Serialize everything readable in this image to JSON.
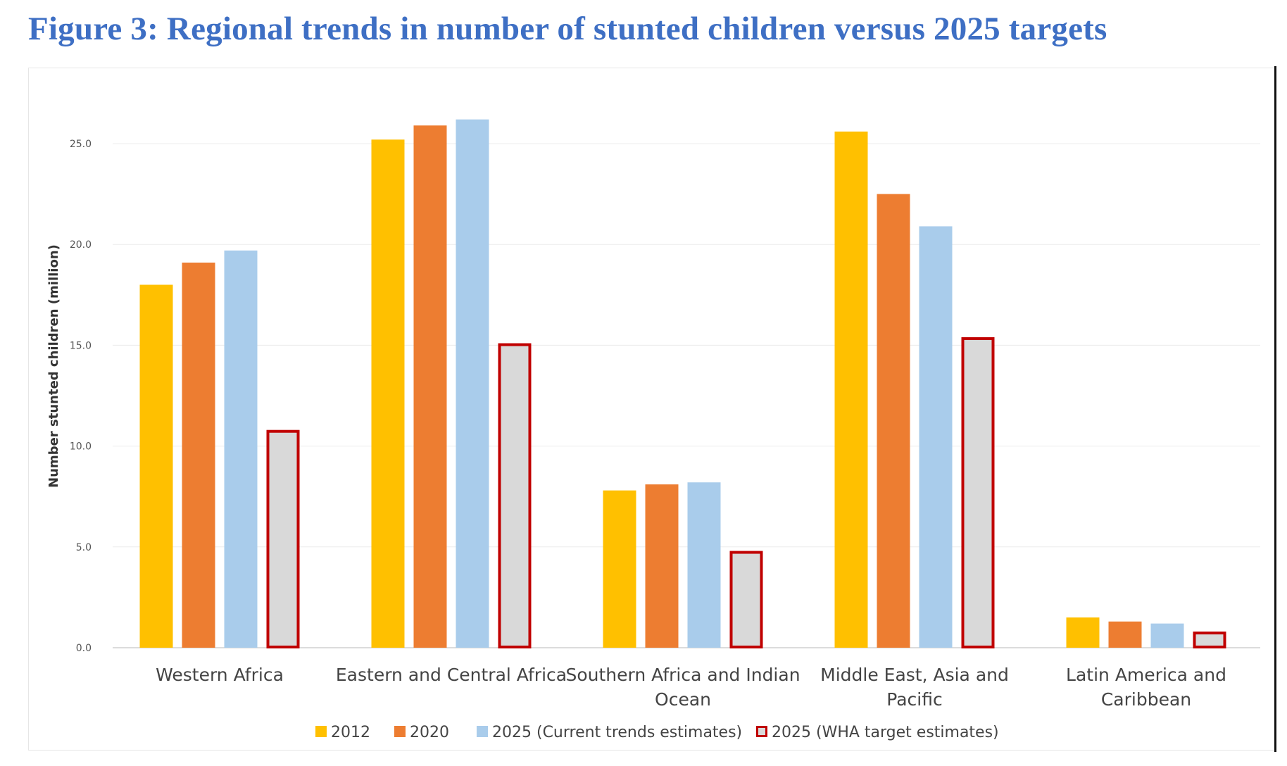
{
  "title": "Figure 3: Regional trends in number of stunted children versus 2025 targets",
  "chart_data": {
    "type": "bar",
    "title": "Figure 3: Regional trends in number of stunted children versus 2025 targets",
    "xlabel": "",
    "ylabel": "Number stunted children (million)",
    "ylim": [
      0,
      27
    ],
    "yticks": [
      0,
      5,
      10,
      15,
      20,
      25
    ],
    "ytick_labels": [
      "0.0",
      "5.0",
      "10.0",
      "15.0",
      "20.0",
      "25.0"
    ],
    "grid": true,
    "legend_position": "bottom",
    "categories": [
      [
        "Western Africa"
      ],
      [
        "Eastern and Central Africa"
      ],
      [
        "Southern Africa and Indian",
        "Ocean"
      ],
      [
        "Middle East, Asia and",
        "Pacific"
      ],
      [
        "Latin America and",
        "Caribbean"
      ]
    ],
    "series": [
      {
        "name": "2012",
        "color": "#FFC000",
        "outline": "",
        "values": [
          18.0,
          25.2,
          7.8,
          25.6,
          1.5
        ]
      },
      {
        "name": "2020",
        "color": "#ED7D31",
        "outline": "",
        "values": [
          19.1,
          25.9,
          8.1,
          22.5,
          1.3
        ]
      },
      {
        "name": "2025 (Current trends estimates)",
        "color": "#A9CCEB",
        "outline": "",
        "values": [
          19.7,
          26.2,
          8.2,
          20.9,
          1.2
        ]
      },
      {
        "name": "2025 (WHA target estimates)",
        "color": "#D9D9D9",
        "outline": "#C00000",
        "values": [
          10.8,
          15.1,
          4.8,
          15.4,
          0.8
        ]
      }
    ]
  }
}
